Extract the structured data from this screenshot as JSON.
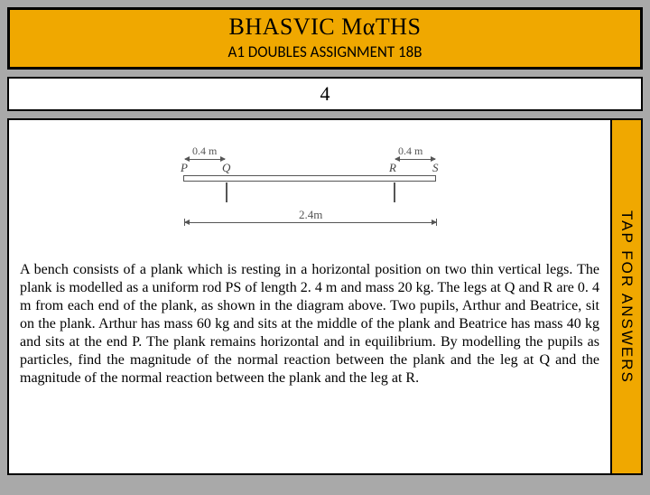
{
  "header": {
    "title": "BHASVIC MαTHS",
    "subtitle": "A1 DOUBLES ASSIGNMENT 18B"
  },
  "question_number": "4",
  "tap_label": "TAP FOR ANSWERS",
  "diagram": {
    "dim_pq": "0.4 m",
    "dim_rs": "0.4 m",
    "dim_full": "2.4m",
    "label_p": "P",
    "label_q": "Q",
    "label_r": "R",
    "label_s": "S"
  },
  "problem_text": "A bench consists of a plank which is resting in a horizontal position on two thin vertical legs. The plank is modelled as a uniform rod PS of length 2. 4 m and mass 20 kg. The legs at Q and R are 0. 4 m from each end of the plank, as shown in the diagram above. Two pupils, Arthur and Beatrice, sit on the plank. Arthur has mass 60 kg and sits at the middle of the plank and Beatrice has mass 40 kg and sits at the end P. The plank remains horizontal and in equilibrium. By modelling the pupils as particles, find the magnitude of the normal reaction between the plank and the leg at Q and the magnitude of the normal reaction between the plank and the leg at R."
}
